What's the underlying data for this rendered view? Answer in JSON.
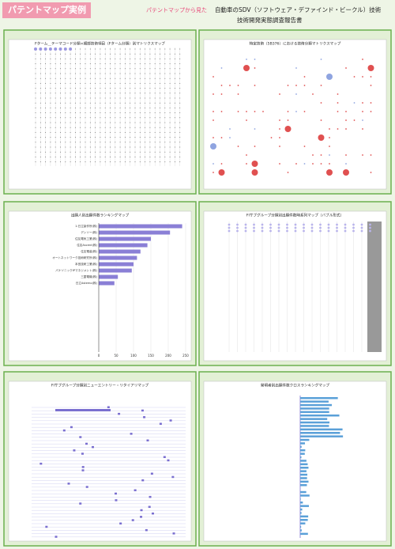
{
  "header": {
    "badge": "パテントマップ実例",
    "lead": "パテントマップから見た",
    "title_line1": "自動車のSDV（ソフトウェア・デファインド・ビークル）技術",
    "title_line2": "技術開発実態調査報告書"
  },
  "panels": [
    {
      "title": "Fターム＿テーマコード分類×細部技術項目（Fターム分類）別マトリクスマップ"
    },
    {
      "title": "特定技術（5B376）における技術分類マトリクスマップ"
    },
    {
      "title": "出願人別出願件数ランキングマップ",
      "chart_data": {
        "type": "bar",
        "orientation": "horizontal",
        "categories": [
          "1:日立製作所(株)",
          "デンソー(株)",
          "住友電気工業(株)",
          "住友Ascent(株)",
          "住友電装(株)",
          "オートネットワーク技術研究所(株)",
          "本田技研工業(株)",
          "パナソニックIPマネジメント(株)",
          "三菱電機(株)",
          "日立Astemo(株)"
        ],
        "values": [
          240,
          205,
          150,
          140,
          120,
          110,
          100,
          95,
          55,
          45
        ],
        "color": "#8a7fd6",
        "xlim": [
          0,
          250
        ],
        "xticks": [
          0,
          50,
          100,
          150,
          200,
          250
        ],
        "grid": true
      }
    },
    {
      "title": "FIサブグループ分類別出願件数時系列マップ（バブル形式）"
    },
    {
      "title": "FIサブグループ分類別ニューエントリー・リタイアリマップ"
    },
    {
      "title": "発明者別出願件数クロスランキングマップ"
    }
  ]
}
